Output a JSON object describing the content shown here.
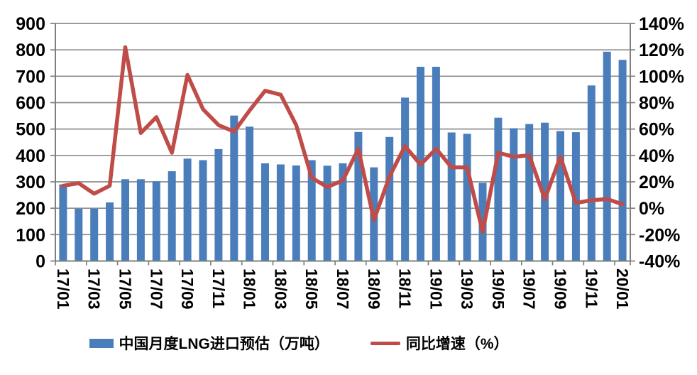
{
  "chart_data": {
    "type": "combo-bar-line",
    "title": "",
    "categories": [
      "17/01",
      "17/02",
      "17/03",
      "17/04",
      "17/05",
      "17/06",
      "17/07",
      "17/08",
      "17/09",
      "17/10",
      "17/11",
      "17/12",
      "18/01",
      "18/02",
      "18/03",
      "18/04",
      "18/05",
      "18/06",
      "18/07",
      "18/08",
      "18/09",
      "18/10",
      "18/11",
      "18/12",
      "19/01",
      "19/02",
      "19/03",
      "19/04",
      "19/05",
      "19/06",
      "19/07",
      "19/08",
      "19/09",
      "19/10",
      "19/11",
      "19/12",
      "20/01"
    ],
    "x_tick_labels": [
      "17/01",
      "17/03",
      "17/05",
      "17/07",
      "17/09",
      "17/11",
      "18/01",
      "18/03",
      "18/05",
      "18/07",
      "18/09",
      "18/11",
      "19/01",
      "19/03",
      "19/05",
      "19/07",
      "19/09",
      "19/11",
      "20/01"
    ],
    "series": [
      {
        "name": "中国月度LNG进口预估（万吨）",
        "type": "bar",
        "axis": "left",
        "color": "#4a7ebb",
        "values": [
          290,
          198,
          198,
          222,
          310,
          310,
          302,
          340,
          388,
          382,
          424,
          551,
          509,
          370,
          366,
          362,
          382,
          361,
          370,
          489,
          355,
          470,
          619,
          736,
          736,
          487,
          482,
          296,
          543,
          503,
          519,
          524,
          492,
          488,
          665,
          793,
          762
        ]
      },
      {
        "name": "同比增速（%）",
        "type": "line",
        "axis": "right",
        "color": "#bf4c49",
        "values": [
          17,
          19,
          11,
          17,
          122,
          57,
          69,
          42,
          101,
          75,
          63,
          58,
          74,
          89,
          86,
          63,
          23,
          16,
          21,
          45,
          -9,
          24,
          47,
          33,
          45,
          31,
          31,
          -18,
          42,
          39,
          40,
          7,
          39,
          4,
          6,
          7,
          3
        ]
      }
    ],
    "left_axis": {
      "min": 0,
      "max": 900,
      "step": 100,
      "tick_labels": [
        "900",
        "800",
        "700",
        "600",
        "500",
        "400",
        "300",
        "200",
        "100",
        "0"
      ]
    },
    "right_axis": {
      "min": -40,
      "max": 140,
      "step": 20,
      "tick_labels": [
        "140%",
        "120%",
        "100%",
        "80%",
        "60%",
        "40%",
        "20%",
        "0%",
        "-20%",
        "-40%"
      ]
    },
    "grid": true,
    "legend_position": "bottom",
    "style": {
      "grid_color": "#8c8c8c",
      "axis_color": "#7f7f7f",
      "text_color": "#000000",
      "background": "#ffffff"
    }
  }
}
